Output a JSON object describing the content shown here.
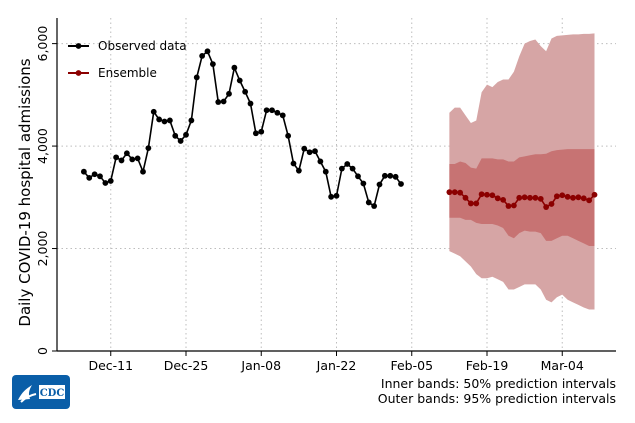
{
  "chart_data": {
    "type": "line",
    "xlabel": "",
    "ylabel": "Daily COVID-19 hospital admissions",
    "ylim": [
      0,
      6500
    ],
    "xlim": [
      "2023-12-01",
      "2024-03-14"
    ],
    "y_ticks": [
      0,
      2000,
      4000,
      6000
    ],
    "y_tick_labels": [
      "0",
      "2,000",
      "4,000",
      "6,000"
    ],
    "x_ticks": [
      "2023-12-11",
      "2023-12-25",
      "2024-01-08",
      "2024-01-22",
      "2024-02-05",
      "2024-02-19",
      "2024-03-04"
    ],
    "x_tick_labels": [
      "Dec-11",
      "Dec-25",
      "Jan-08",
      "Jan-22",
      "Feb-05",
      "Feb-19",
      "Mar-04"
    ],
    "grid": true,
    "legend_position": "top-left",
    "series": [
      {
        "name": "Observed data",
        "color": "#000000",
        "start_date": "2023-12-06",
        "values": [
          3500,
          3380,
          3450,
          3410,
          3280,
          3320,
          3780,
          3720,
          3860,
          3740,
          3760,
          3500,
          3960,
          4670,
          4520,
          4480,
          4500,
          4200,
          4100,
          4220,
          4500,
          5340,
          5760,
          5850,
          5600,
          4860,
          4870,
          5020,
          5530,
          5280,
          5060,
          4830,
          4250,
          4280,
          4700,
          4700,
          4650,
          4600,
          4200,
          3660,
          3520,
          3950,
          3880,
          3900,
          3700,
          3500,
          3010,
          3030,
          3560,
          3650,
          3560,
          3410,
          3270,
          2900,
          2830,
          3250,
          3420,
          3420,
          3400,
          3260
        ]
      },
      {
        "name": "Ensemble",
        "color": "#8b0000",
        "start_date": "2024-02-12",
        "values": [
          3100,
          3100,
          3090,
          2990,
          2880,
          2880,
          3060,
          3050,
          3040,
          2980,
          2950,
          2830,
          2840,
          2990,
          3000,
          2990,
          2990,
          2970,
          2810,
          2870,
          3020,
          3040,
          3010,
          2990,
          3000,
          2980,
          2940,
          3050
        ],
        "band_50_lower": [
          2600,
          2600,
          2600,
          2560,
          2560,
          2500,
          2480,
          2480,
          2480,
          2450,
          2400,
          2250,
          2200,
          2300,
          2350,
          2330,
          2330,
          2300,
          2150,
          2150,
          2200,
          2250,
          2250,
          2200,
          2150,
          2100,
          2050,
          2050
        ],
        "band_50_upper": [
          3650,
          3650,
          3700,
          3670,
          3580,
          3560,
          3760,
          3760,
          3760,
          3740,
          3740,
          3700,
          3700,
          3780,
          3800,
          3820,
          3840,
          3840,
          3850,
          3900,
          3920,
          3930,
          3940,
          3940,
          3940,
          3940,
          3940,
          3940
        ],
        "band_95_lower": [
          1950,
          1900,
          1850,
          1750,
          1650,
          1500,
          1420,
          1420,
          1450,
          1400,
          1350,
          1200,
          1200,
          1250,
          1300,
          1300,
          1300,
          1200,
          1000,
          950,
          1050,
          1100,
          1000,
          950,
          900,
          850,
          810,
          810
        ],
        "band_95_upper": [
          4650,
          4750,
          4750,
          4600,
          4450,
          4500,
          5050,
          5200,
          5150,
          5250,
          5300,
          5300,
          5450,
          5750,
          6000,
          6050,
          6080,
          5950,
          5850,
          6100,
          6150,
          6160,
          6170,
          6180,
          6180,
          6190,
          6190,
          6200
        ]
      }
    ],
    "band_colors": {
      "outer": "#d6a5a5",
      "inner": "#c77373"
    }
  },
  "captions": {
    "line1": "Inner bands: 50% prediction intervals",
    "line2": "Outer bands: 95% prediction intervals"
  },
  "logo": {
    "text": "CDC",
    "icon": "cdc-logo-icon",
    "color": "#0a5ea8"
  }
}
